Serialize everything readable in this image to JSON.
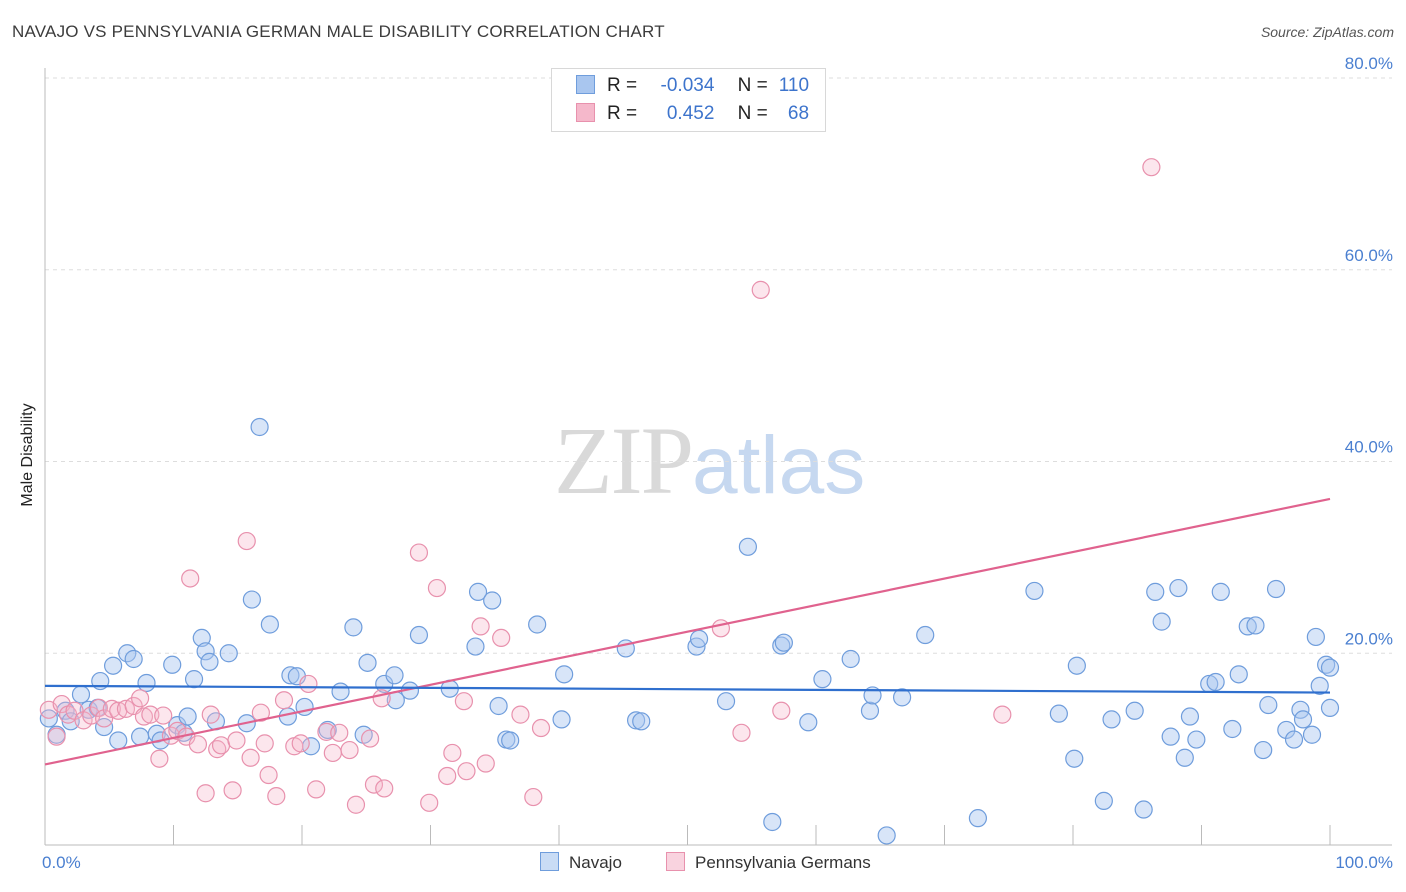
{
  "title": "NAVAJO VS PENNSYLVANIA GERMAN MALE DISABILITY CORRELATION CHART",
  "source": "Source: ZipAtlas.com",
  "watermark": {
    "part1": "ZIP",
    "part2": "atlas"
  },
  "legend": [
    {
      "r_label": "R =",
      "r_value": "-0.034",
      "n_label": "N =",
      "n_value": "110"
    },
    {
      "r_label": "R =",
      "r_value": "0.452",
      "n_label": "N =",
      "n_value": "68"
    }
  ],
  "bottom_legend": {
    "navajo": "Navajo",
    "pa_germans": "Pennsylvania Germans"
  },
  "x_tick_labels": {
    "left": "0.0%",
    "right": "100.0%"
  },
  "colors": {
    "navajo_fill": "#a9c6ef",
    "navajo_stroke": "#6f9ddc",
    "navajo_line": "#2f6fce",
    "pa_fill": "#f5b8cb",
    "pa_stroke": "#e891ad",
    "pa_line": "#e0628e",
    "tick_text": "#4a7fd0",
    "grid": "#dddddd"
  },
  "chart_data": {
    "type": "scatter",
    "title": "NAVAJO VS PENNSYLVANIA GERMAN MALE DISABILITY CORRELATION CHART",
    "xlabel": "",
    "ylabel": "Male Disability",
    "xlim": [
      0,
      100
    ],
    "ylim": [
      0,
      80
    ],
    "y_ticks": [
      {
        "value": 20,
        "label": "20.0%"
      },
      {
        "value": 40,
        "label": "40.0%"
      },
      {
        "value": 60,
        "label": "60.0%"
      },
      {
        "value": 80,
        "label": "80.0%"
      }
    ],
    "grid": "horizontal dashed",
    "series": [
      {
        "name": "Navajo",
        "trend": {
          "x": [
            0,
            100
          ],
          "y": [
            16.6,
            15.9
          ]
        },
        "points": [
          [
            0.3,
            13.2
          ],
          [
            0.9,
            11.5
          ],
          [
            1.6,
            14.0
          ],
          [
            2.0,
            12.9
          ],
          [
            2.8,
            15.7
          ],
          [
            3.4,
            14.1
          ],
          [
            4.1,
            14.3
          ],
          [
            4.3,
            17.1
          ],
          [
            4.6,
            12.3
          ],
          [
            5.3,
            18.7
          ],
          [
            5.7,
            10.9
          ],
          [
            6.4,
            20.0
          ],
          [
            6.9,
            19.4
          ],
          [
            7.4,
            11.3
          ],
          [
            7.9,
            16.9
          ],
          [
            8.7,
            11.6
          ],
          [
            9.0,
            10.9
          ],
          [
            9.9,
            18.8
          ],
          [
            10.3,
            12.5
          ],
          [
            10.8,
            11.7
          ],
          [
            11.1,
            13.4
          ],
          [
            11.6,
            17.3
          ],
          [
            12.2,
            21.6
          ],
          [
            12.5,
            20.2
          ],
          [
            12.8,
            19.1
          ],
          [
            13.3,
            12.9
          ],
          [
            14.3,
            20.0
          ],
          [
            15.7,
            12.7
          ],
          [
            16.1,
            25.6
          ],
          [
            16.7,
            43.6
          ],
          [
            17.5,
            23.0
          ],
          [
            18.9,
            13.4
          ],
          [
            19.1,
            17.7
          ],
          [
            19.6,
            17.6
          ],
          [
            20.2,
            14.4
          ],
          [
            20.7,
            10.3
          ],
          [
            22.0,
            12.0
          ],
          [
            23.0,
            16.0
          ],
          [
            24.0,
            22.7
          ],
          [
            24.8,
            11.5
          ],
          [
            25.1,
            19.0
          ],
          [
            26.4,
            16.8
          ],
          [
            27.2,
            17.7
          ],
          [
            27.3,
            15.1
          ],
          [
            28.4,
            16.1
          ],
          [
            29.1,
            21.9
          ],
          [
            31.5,
            16.3
          ],
          [
            33.5,
            20.7
          ],
          [
            33.7,
            26.4
          ],
          [
            34.8,
            25.5
          ],
          [
            35.3,
            14.5
          ],
          [
            35.9,
            11.0
          ],
          [
            36.2,
            10.9
          ],
          [
            38.3,
            23.0
          ],
          [
            40.2,
            13.1
          ],
          [
            40.4,
            17.8
          ],
          [
            45.2,
            20.5
          ],
          [
            46.0,
            13.0
          ],
          [
            46.4,
            12.9
          ],
          [
            50.7,
            20.7
          ],
          [
            50.9,
            21.5
          ],
          [
            53.0,
            15.0
          ],
          [
            54.7,
            31.1
          ],
          [
            56.6,
            2.4
          ],
          [
            57.3,
            20.8
          ],
          [
            57.5,
            21.1
          ],
          [
            59.4,
            12.8
          ],
          [
            60.5,
            17.3
          ],
          [
            62.7,
            19.4
          ],
          [
            64.2,
            14.0
          ],
          [
            64.4,
            15.6
          ],
          [
            65.5,
            1.0
          ],
          [
            66.7,
            15.4
          ],
          [
            68.5,
            21.9
          ],
          [
            72.6,
            2.8
          ],
          [
            77.0,
            26.5
          ],
          [
            78.9,
            13.7
          ],
          [
            80.1,
            9.0
          ],
          [
            80.3,
            18.7
          ],
          [
            82.4,
            4.6
          ],
          [
            83.0,
            13.1
          ],
          [
            84.8,
            14.0
          ],
          [
            85.5,
            3.7
          ],
          [
            86.4,
            26.4
          ],
          [
            86.9,
            23.3
          ],
          [
            87.6,
            11.3
          ],
          [
            88.2,
            26.8
          ],
          [
            88.7,
            9.1
          ],
          [
            89.1,
            13.4
          ],
          [
            89.6,
            11.0
          ],
          [
            90.6,
            16.8
          ],
          [
            91.1,
            17.0
          ],
          [
            91.5,
            26.4
          ],
          [
            92.4,
            12.1
          ],
          [
            92.9,
            17.8
          ],
          [
            93.6,
            22.8
          ],
          [
            94.2,
            22.9
          ],
          [
            94.8,
            9.9
          ],
          [
            95.2,
            14.6
          ],
          [
            95.8,
            26.7
          ],
          [
            96.6,
            12.0
          ],
          [
            97.2,
            11.0
          ],
          [
            97.7,
            14.1
          ],
          [
            97.9,
            13.1
          ],
          [
            98.6,
            11.5
          ],
          [
            98.9,
            21.7
          ],
          [
            99.2,
            16.6
          ],
          [
            99.7,
            18.8
          ],
          [
            100.0,
            18.5
          ],
          [
            100.0,
            14.3
          ]
        ]
      },
      {
        "name": "Pennsylvania Germans",
        "trend": {
          "x": [
            0,
            100
          ],
          "y": [
            8.4,
            36.1
          ]
        },
        "points": [
          [
            0.3,
            14.1
          ],
          [
            0.9,
            11.3
          ],
          [
            1.3,
            14.7
          ],
          [
            1.8,
            13.6
          ],
          [
            2.3,
            14.0
          ],
          [
            3.0,
            13.0
          ],
          [
            3.6,
            13.5
          ],
          [
            4.2,
            14.3
          ],
          [
            4.6,
            13.2
          ],
          [
            5.2,
            14.2
          ],
          [
            5.7,
            14.0
          ],
          [
            6.3,
            14.2
          ],
          [
            6.9,
            14.5
          ],
          [
            7.4,
            15.3
          ],
          [
            7.7,
            13.4
          ],
          [
            8.2,
            13.6
          ],
          [
            8.9,
            9.0
          ],
          [
            9.2,
            13.5
          ],
          [
            9.8,
            11.4
          ],
          [
            10.3,
            11.9
          ],
          [
            11.0,
            11.3
          ],
          [
            11.3,
            27.8
          ],
          [
            11.9,
            10.5
          ],
          [
            12.5,
            5.4
          ],
          [
            12.9,
            13.6
          ],
          [
            13.4,
            10.0
          ],
          [
            13.7,
            10.4
          ],
          [
            14.6,
            5.7
          ],
          [
            14.9,
            10.9
          ],
          [
            15.7,
            31.7
          ],
          [
            16.0,
            9.1
          ],
          [
            16.8,
            13.8
          ],
          [
            17.1,
            10.6
          ],
          [
            17.4,
            7.3
          ],
          [
            18.0,
            5.1
          ],
          [
            18.6,
            15.1
          ],
          [
            19.4,
            10.3
          ],
          [
            19.9,
            10.6
          ],
          [
            20.5,
            16.8
          ],
          [
            21.1,
            5.8
          ],
          [
            21.9,
            11.8
          ],
          [
            22.4,
            9.6
          ],
          [
            22.9,
            11.7
          ],
          [
            23.7,
            9.9
          ],
          [
            24.2,
            4.2
          ],
          [
            25.3,
            11.1
          ],
          [
            25.6,
            6.3
          ],
          [
            26.2,
            15.3
          ],
          [
            26.4,
            5.9
          ],
          [
            29.1,
            30.5
          ],
          [
            29.9,
            4.4
          ],
          [
            30.5,
            26.8
          ],
          [
            31.3,
            7.2
          ],
          [
            31.7,
            9.6
          ],
          [
            32.6,
            15.0
          ],
          [
            32.8,
            7.7
          ],
          [
            33.9,
            22.8
          ],
          [
            34.3,
            8.5
          ],
          [
            35.5,
            21.6
          ],
          [
            37.0,
            13.6
          ],
          [
            38.0,
            5.0
          ],
          [
            38.6,
            12.2
          ],
          [
            52.6,
            22.6
          ],
          [
            54.2,
            11.7
          ],
          [
            55.7,
            57.9
          ],
          [
            57.3,
            14.0
          ],
          [
            74.5,
            13.6
          ],
          [
            86.1,
            70.7
          ]
        ]
      }
    ]
  }
}
